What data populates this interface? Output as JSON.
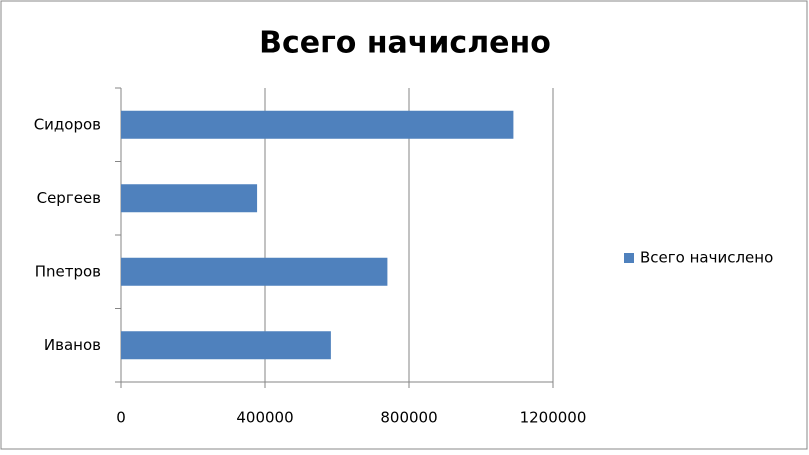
{
  "chart_data": {
    "type": "bar",
    "orientation": "horizontal",
    "title": "Всего начислено",
    "categories": [
      "Иванов",
      "Пnетров",
      "Сергеев",
      "Сидоров"
    ],
    "series": [
      {
        "name": "Всего начислено",
        "color": "#4f81bd",
        "values": [
          583000,
          740000,
          378000,
          1090000
        ]
      }
    ],
    "xlim": [
      0,
      1200000
    ],
    "xticks": [
      0,
      400000,
      800000,
      1200000
    ],
    "grid": true,
    "legend": "right"
  }
}
